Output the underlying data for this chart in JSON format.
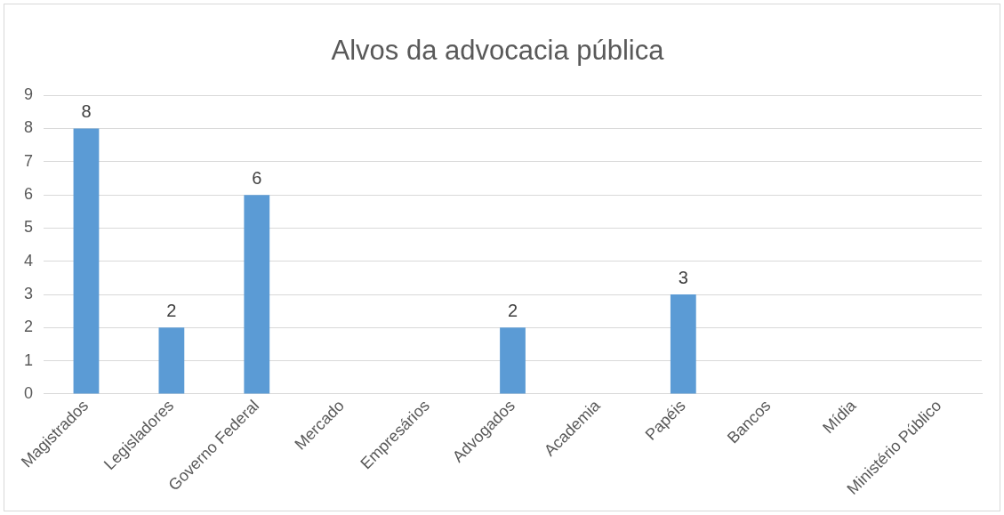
{
  "chart_data": {
    "type": "bar",
    "title": "Alvos da advocacia pública",
    "categories": [
      "Magistrados",
      "Legisladores",
      "Governo Federal",
      "Mercado",
      "Empresários",
      "Advogados",
      "Academia",
      "Papéis",
      "Bancos",
      "Mídia",
      "Ministério Público"
    ],
    "values": [
      8,
      2,
      6,
      null,
      null,
      2,
      null,
      3,
      null,
      null,
      null
    ],
    "value_labels": [
      "8",
      "2",
      "6",
      null,
      null,
      "2",
      null,
      "3",
      null,
      null,
      null
    ],
    "color": "#5b9bd5",
    "ylim": [
      0,
      9
    ],
    "yticks": [
      0,
      1,
      2,
      3,
      4,
      5,
      6,
      7,
      8,
      9
    ],
    "grid": "y",
    "legend": false
  }
}
